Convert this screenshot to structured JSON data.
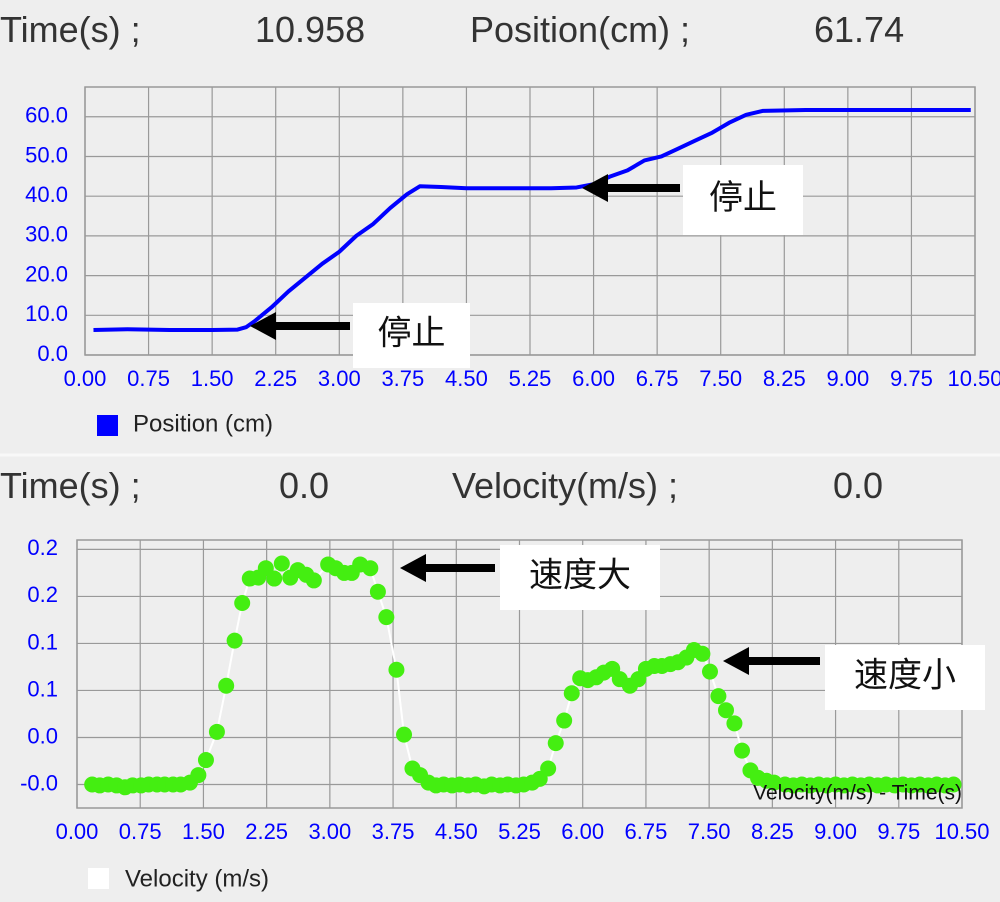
{
  "header_top": {
    "time_label": "Time(s) ;",
    "time_value": "10.958",
    "quantity_label": "Position(cm) ;",
    "quantity_value": "61.74"
  },
  "header_bottom": {
    "time_label": "Time(s) ;",
    "time_value": "0.0",
    "quantity_label": "Velocity(m/s) ;",
    "quantity_value": "0.0"
  },
  "chart_data": [
    {
      "type": "line",
      "grid": true,
      "x": [
        0.1,
        0.5,
        1.0,
        1.5,
        1.8,
        1.9,
        2.0,
        2.2,
        2.4,
        2.6,
        2.8,
        3.0,
        3.2,
        3.4,
        3.6,
        3.8,
        3.95,
        4.2,
        4.5,
        5.0,
        5.5,
        5.8,
        6.0,
        6.2,
        6.4,
        6.6,
        6.8,
        7.0,
        7.2,
        7.4,
        7.6,
        7.8,
        8.0,
        8.5,
        9.0,
        9.5,
        10.0,
        10.45
      ],
      "series": [
        {
          "name": "Position (cm)",
          "color": "#0000ff",
          "values": [
            6.3,
            6.5,
            6.3,
            6.3,
            6.4,
            7.0,
            8.5,
            12.0,
            16.0,
            19.5,
            23.0,
            26.0,
            30.0,
            33.0,
            37.0,
            40.5,
            42.5,
            42.3,
            42.0,
            42.0,
            42.0,
            42.2,
            43.0,
            45.0,
            46.5,
            49.0,
            50.0,
            52.0,
            54.0,
            56.0,
            58.5,
            60.5,
            61.5,
            61.7,
            61.7,
            61.7,
            61.7,
            61.7
          ]
        }
      ],
      "xlim": [
        0,
        10.5
      ],
      "xticks": [
        {
          "value": 0,
          "label": "0.00"
        },
        {
          "value": 0.75,
          "label": "0.75"
        },
        {
          "value": 1.5,
          "label": "1.50"
        },
        {
          "value": 2.25,
          "label": "2.25"
        },
        {
          "value": 3,
          "label": "3.00"
        },
        {
          "value": 3.75,
          "label": "3.75"
        },
        {
          "value": 4.5,
          "label": "4.50"
        },
        {
          "value": 5.25,
          "label": "5.25"
        },
        {
          "value": 6,
          "label": "6.00"
        },
        {
          "value": 6.75,
          "label": "6.75"
        },
        {
          "value": 7.5,
          "label": "7.50"
        },
        {
          "value": 8.25,
          "label": "8.25"
        },
        {
          "value": 9,
          "label": "9.00"
        },
        {
          "value": 9.75,
          "label": "9.75"
        },
        {
          "value": 10.5,
          "label": "10.50"
        }
      ],
      "ylim": [
        0,
        67.5
      ],
      "yticks": [
        {
          "value": 0,
          "label": "0.0"
        },
        {
          "value": 10,
          "label": "10.0"
        },
        {
          "value": 20,
          "label": "20.0"
        },
        {
          "value": 30,
          "label": "30.0"
        },
        {
          "value": 40,
          "label": "40.0"
        },
        {
          "value": 50,
          "label": "50.0"
        },
        {
          "value": 60,
          "label": "60.0"
        }
      ],
      "annotations": [
        {
          "text": "停止"
        },
        {
          "text": "停止"
        }
      ]
    },
    {
      "type": "line",
      "grid": true,
      "markers": true,
      "line_color": "#ffffff",
      "description": "Velocity(m/s) - Time(s)",
      "x": [
        0.18,
        0.27,
        0.37,
        0.47,
        0.57,
        0.66,
        0.76,
        0.85,
        0.95,
        1.04,
        1.14,
        1.23,
        1.34,
        1.44,
        1.53,
        1.66,
        1.77,
        1.87,
        1.96,
        2.05,
        2.15,
        2.24,
        2.34,
        2.43,
        2.53,
        2.62,
        2.72,
        2.81,
        2.98,
        3.07,
        3.17,
        3.26,
        3.36,
        3.48,
        3.57,
        3.67,
        3.79,
        3.88,
        3.98,
        4.07,
        4.17,
        4.26,
        4.35,
        4.45,
        4.54,
        4.64,
        4.73,
        4.83,
        4.92,
        5.02,
        5.11,
        5.21,
        5.3,
        5.4,
        5.49,
        5.59,
        5.68,
        5.78,
        5.87,
        5.97,
        6.06,
        6.16,
        6.25,
        6.35,
        6.44,
        6.56,
        6.66,
        6.75,
        6.85,
        6.94,
        7.04,
        7.13,
        7.23,
        7.32,
        7.42,
        7.51,
        7.61,
        7.7,
        7.8,
        7.89,
        7.99,
        8.08,
        8.18,
        8.27,
        8.4,
        8.5,
        8.6,
        8.7,
        8.8,
        8.9,
        9.0,
        9.1,
        9.2,
        9.3,
        9.4,
        9.5,
        9.6,
        9.7,
        9.8,
        9.9,
        10.0,
        10.1,
        10.2,
        10.3,
        10.4
      ],
      "series": [
        {
          "name": "Velocity (m/s)",
          "color": "#44ee11",
          "values": [
            -0.005,
            -0.006,
            -0.005,
            -0.006,
            -0.008,
            -0.006,
            -0.006,
            -0.005,
            -0.005,
            -0.005,
            -0.005,
            -0.005,
            -0.003,
            0.005,
            0.021,
            0.051,
            0.1,
            0.148,
            0.188,
            0.214,
            0.215,
            0.225,
            0.214,
            0.23,
            0.215,
            0.223,
            0.218,
            0.212,
            0.229,
            0.225,
            0.22,
            0.22,
            0.229,
            0.225,
            0.2,
            0.173,
            0.117,
            0.048,
            0.012,
            0.005,
            -0.003,
            -0.006,
            -0.005,
            -0.006,
            -0.005,
            -0.006,
            -0.005,
            -0.007,
            -0.005,
            -0.006,
            -0.005,
            -0.006,
            -0.005,
            -0.003,
            0.001,
            0.012,
            0.039,
            0.063,
            0.092,
            0.108,
            0.106,
            0.109,
            0.114,
            0.118,
            0.107,
            0.1,
            0.107,
            0.118,
            0.121,
            0.121,
            0.123,
            0.125,
            0.13,
            0.138,
            0.134,
            0.115,
            0.089,
            0.074,
            0.06,
            0.031,
            0.01,
            0.002,
            -0.001,
            -0.003,
            -0.005,
            -0.006,
            -0.005,
            -0.006,
            -0.005,
            -0.006,
            -0.005,
            -0.006,
            -0.005,
            -0.006,
            -0.005,
            -0.006,
            -0.005,
            -0.006,
            -0.005,
            -0.006,
            -0.005,
            -0.006,
            -0.005,
            -0.006,
            -0.005
          ],
          "legend_color": "#ffffff"
        }
      ],
      "xlim": [
        0,
        10.5
      ],
      "xticks": [
        {
          "value": 0,
          "label": "0.00"
        },
        {
          "value": 0.75,
          "label": "0.75"
        },
        {
          "value": 1.5,
          "label": "1.50"
        },
        {
          "value": 2.25,
          "label": "2.25"
        },
        {
          "value": 3,
          "label": "3.00"
        },
        {
          "value": 3.75,
          "label": "3.75"
        },
        {
          "value": 4.5,
          "label": "4.50"
        },
        {
          "value": 5.25,
          "label": "5.25"
        },
        {
          "value": 6,
          "label": "6.00"
        },
        {
          "value": 6.75,
          "label": "6.75"
        },
        {
          "value": 7.5,
          "label": "7.50"
        },
        {
          "value": 8.25,
          "label": "8.25"
        },
        {
          "value": 9,
          "label": "9.00"
        },
        {
          "value": 9.75,
          "label": "9.75"
        },
        {
          "value": 10.5,
          "label": "10.50"
        }
      ],
      "ylim": [
        -0.03,
        0.255
      ],
      "yticks": [
        {
          "value": -0.005,
          "label": "-0.0"
        },
        {
          "value": 0.045,
          "label": "0.0"
        },
        {
          "value": 0.095,
          "label": "0.1"
        },
        {
          "value": 0.145,
          "label": "0.1"
        },
        {
          "value": 0.195,
          "label": "0.2"
        },
        {
          "value": 0.245,
          "label": "0.2"
        }
      ],
      "annotations": [
        {
          "text": "速度大"
        },
        {
          "text": "速度小"
        }
      ]
    }
  ]
}
